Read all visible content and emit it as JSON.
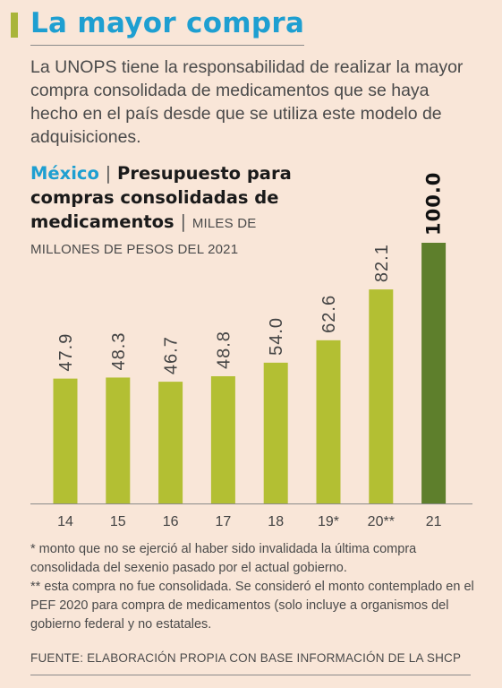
{
  "title": "La mayor compra",
  "intro": "La UNOPS tiene la responsabilidad de realizar la mayor compra consolidada de medicamentos que se haya hecho en el país desde que se utiliza este modelo de adquisiciones.",
  "chart_heading": {
    "country": "México",
    "separator": "|",
    "subject": "Presupuesto para compras consolidadas de medicamentos",
    "unit_separator": "|",
    "unit": "MILES DE MILLONES DE PESOS DEL 2021"
  },
  "colors": {
    "bar": "#b3bf33",
    "bar_highlight": "#5e7f2c",
    "title": "#1e9fd1"
  },
  "chart_data": {
    "type": "bar",
    "categories": [
      "14",
      "15",
      "16",
      "17",
      "18",
      "19*",
      "20**",
      "21"
    ],
    "values": [
      47.9,
      48.3,
      46.7,
      48.8,
      54.0,
      62.6,
      82.1,
      100.0
    ],
    "value_labels": [
      "47.9",
      "48.3",
      "46.7",
      "48.8",
      "54.0",
      "62.6",
      "82.1",
      "100.0"
    ],
    "highlight_index": 7,
    "ylim": [
      0,
      100
    ],
    "grid": false
  },
  "notes": [
    "* monto que no se ejerció al haber sido invalidada la última compra consolidada del sexenio pasado por el actual gobierno.",
    "** esta compra no fue consolidada. Se consideró el monto contemplado en el PEF 2020 para compra de medicamentos (solo incluye a organismos del gobierno federal y no estatales."
  ],
  "source": "FUENTE: ELABORACIÓN PROPIA CON BASE INFORMACIÓN DE LA SHCP"
}
